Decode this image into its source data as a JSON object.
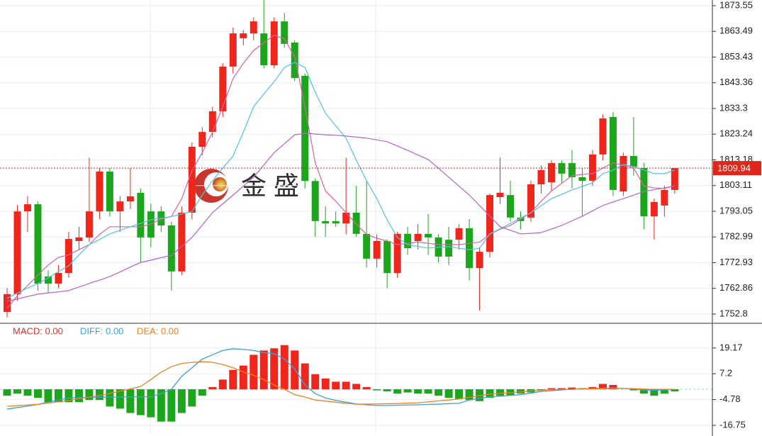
{
  "chart_data": [
    {
      "type": "candlestick",
      "watermark": "金 盛",
      "up_color": "#f0251b",
      "down_color": "#1ca61c",
      "ylim": [
        1749.47,
        1875.77
      ],
      "yticks": [
        1873.55,
        1863.49,
        1853.43,
        1843.36,
        1833.3,
        1823.24,
        1813.18,
        1803.11,
        1793.05,
        1782.99,
        1772.93,
        1762.86,
        1752.8
      ],
      "grid": true,
      "last_price": 1809.94,
      "open": [
        1753.6,
        1760.6,
        1793.0,
        1795.8,
        1767.5,
        1764.7,
        1768.9,
        1781.4,
        1782.8,
        1793.0,
        1808.6,
        1793.0,
        1796.9,
        1800.3,
        1793.0,
        1793.0,
        1787.5,
        1769.5,
        1792.5,
        1818.3,
        1824.1,
        1832.2,
        1849.7,
        1860.8,
        1862.7,
        1862.7,
        1850.2,
        1867.4,
        1859.1,
        1846.1,
        1804.9,
        1789.2,
        1789.2,
        1788.3,
        1792.5,
        1784.2,
        1774.5,
        1781.4,
        1768.9,
        1784.2,
        1781.4,
        1784.2,
        1782.8,
        1781.9,
        1781.9,
        1786.4,
        1770.8,
        1777.2,
        1798.6,
        1799.4,
        1790.6,
        1790.6,
        1803.6,
        1804.4,
        1811.9,
        1811.9,
        1806.4,
        1805.0,
        1815.3,
        1830.0,
        1800.8,
        1814.7,
        1810.0,
        1791.1,
        1795.3,
        1801.4
      ],
      "high": [
        1763,
        1795.5,
        1799,
        1797,
        1770,
        1772,
        1785,
        1787,
        1814,
        1810,
        1810,
        1799,
        1810,
        1802,
        1796,
        1795,
        1789,
        1795,
        1820,
        1826,
        1834,
        1851,
        1865,
        1864,
        1869,
        1876,
        1869,
        1870.8,
        1860,
        1847,
        1806,
        1795,
        1793,
        1814,
        1803,
        1805,
        1784,
        1782,
        1785,
        1787,
        1788,
        1792,
        1784,
        1787,
        1788,
        1790,
        1779,
        1800,
        1814.1,
        1805,
        1793,
        1805,
        1811,
        1813,
        1813,
        1817,
        1810,
        1817,
        1831,
        1831.9,
        1816,
        1830,
        1812,
        1798,
        1803,
        1810
      ],
      "low": [
        1751.5,
        1758,
        1785,
        1762,
        1761,
        1763,
        1767,
        1778,
        1781,
        1790,
        1791,
        1785,
        1794,
        1773,
        1779,
        1785,
        1762,
        1768,
        1790,
        1815,
        1822,
        1830,
        1847,
        1858,
        1860,
        1849,
        1849,
        1857,
        1844,
        1802,
        1783,
        1783,
        1787,
        1784,
        1783,
        1771,
        1771,
        1763,
        1767,
        1776,
        1778,
        1776,
        1773,
        1772,
        1778,
        1766,
        1754.2,
        1775,
        1796,
        1789,
        1786,
        1789,
        1800,
        1801,
        1804,
        1802,
        1791,
        1803,
        1813,
        1799,
        1799,
        1807,
        1786,
        1782,
        1791,
        1800
      ],
      "close": [
        1760.6,
        1793.0,
        1795.8,
        1764.7,
        1764.7,
        1768.9,
        1782.2,
        1782.8,
        1793.0,
        1808.6,
        1793.0,
        1796.9,
        1798.9,
        1782.8,
        1782.8,
        1787.5,
        1769.5,
        1792.5,
        1818.3,
        1824.1,
        1832.2,
        1849.7,
        1862.7,
        1862.7,
        1867.4,
        1850.2,
        1867.4,
        1858.6,
        1845.2,
        1804.9,
        1789.2,
        1788.3,
        1788.3,
        1792.5,
        1784.2,
        1774.5,
        1781.4,
        1768.9,
        1784.2,
        1778.6,
        1784.2,
        1782.8,
        1775.3,
        1775.3,
        1786.4,
        1770.8,
        1777.2,
        1799.4,
        1800.3,
        1790.6,
        1789.2,
        1803.6,
        1809.2,
        1811.9,
        1807.8,
        1806.4,
        1805.0,
        1815.3,
        1829.4,
        1801.4,
        1814.7,
        1810.5,
        1791.1,
        1796.7,
        1801.4,
        1809.94
      ],
      "lines": [
        {
          "color": "#e0609c",
          "values": [
            1755,
            1760,
            1764,
            1768,
            1772,
            1775,
            1776,
            1778,
            1780,
            1784,
            1787,
            1787,
            1787,
            1787,
            1788,
            1790,
            1791,
            1798,
            1809,
            1816,
            1824,
            1834,
            1845,
            1851,
            1856,
            1859,
            1862,
            1860.5,
            1853.6,
            1834,
            1812,
            1801,
            1797,
            1792.5,
            1788,
            1784,
            1782.5,
            1781.4,
            1780,
            1780.5,
            1781,
            1780.5,
            1780,
            1780,
            1780,
            1780.5,
            1781,
            1784,
            1786,
            1787.5,
            1790,
            1792.5,
            1797,
            1801,
            1804,
            1807,
            1807.5,
            1807.8,
            1810,
            1812,
            1811,
            1810,
            1803,
            1802.2,
            1802,
            1803
          ]
        },
        {
          "color": "#4ec5e2",
          "values": [
            1759,
            1761,
            1763,
            1764.7,
            1767,
            1769.5,
            1771.7,
            1776,
            1780,
            1782,
            1784.2,
            1785.6,
            1787,
            1788.3,
            1789.7,
            1790.3,
            1791,
            1792,
            1793,
            1799.4,
            1805,
            1810,
            1814.7,
            1824,
            1834,
            1839,
            1843.8,
            1849.4,
            1851.3,
            1849.4,
            1839.7,
            1831.4,
            1826.5,
            1821.7,
            1813,
            1805,
            1798,
            1789.7,
            1782.8,
            1780,
            1779.3,
            1778.6,
            1779,
            1779.2,
            1778.6,
            1778,
            1778.6,
            1784.2,
            1786.2,
            1788.3,
            1790.4,
            1792.5,
            1795.2,
            1798,
            1799.7,
            1801.4,
            1802.8,
            1804.2,
            1807.8,
            1809.2,
            1811.4,
            1810.5,
            1809.2,
            1807.8,
            1807.8,
            1809.2
          ]
        },
        {
          "color": "#b464cc",
          "values": [
            1757.8,
            1758.7,
            1759.7,
            1760.6,
            1761.1,
            1761.5,
            1762,
            1763.4,
            1764.8,
            1766.1,
            1767.5,
            1769.3,
            1771.2,
            1773,
            1773.9,
            1774.9,
            1775.8,
            1779.3,
            1782.8,
            1787.6,
            1792.5,
            1796,
            1799.4,
            1802.9,
            1806.4,
            1811.2,
            1816,
            1819.5,
            1823,
            1823.6,
            1823.3,
            1823,
            1822.8,
            1822.5,
            1822.1,
            1821.7,
            1821,
            1820.3,
            1818.6,
            1816.9,
            1815.1,
            1813.3,
            1809.9,
            1806.4,
            1802.9,
            1799.4,
            1795.3,
            1791.2,
            1787,
            1785.6,
            1784.2,
            1784.4,
            1784.7,
            1786.1,
            1787.5,
            1789.3,
            1791.1,
            1793.2,
            1795.3,
            1796.7,
            1798,
            1799.4,
            1800.8,
            1801.5,
            1802.2,
            1803
          ]
        }
      ]
    },
    {
      "type": "macd",
      "up_color": "#f0251b",
      "down_color": "#1ca61c",
      "ylim": [
        -20.7,
        30.3
      ],
      "yticks": [
        19.17,
        7.2,
        -4.78,
        -16.75
      ],
      "legend": [
        {
          "text": "MACD: 0.00",
          "color": "#e03030"
        },
        {
          "text": "DIFF: 0.00",
          "color": "#3aa0e0"
        },
        {
          "text": "DEA: 0.00",
          "color": "#f08020"
        }
      ],
      "values": [
        -3,
        -2,
        -3,
        -4,
        -6,
        -6,
        -6,
        -6,
        -5,
        -5,
        -8,
        -9,
        -11,
        -12,
        -13,
        -15,
        -15,
        -11,
        -8,
        -3,
        1,
        4.5,
        9,
        11,
        16,
        18,
        19,
        20.5,
        18,
        12,
        7,
        5,
        3.5,
        3.5,
        2.5,
        1,
        -0.5,
        -1,
        -2,
        -1.5,
        -2,
        -2,
        -3,
        -4,
        -4.5,
        -5,
        -5.5,
        -4,
        -3,
        -3,
        -2,
        -1.5,
        -0.5,
        0.5,
        0.5,
        0.8,
        0.5,
        1,
        2.5,
        2,
        0,
        -0.5,
        -2,
        -3,
        -2,
        -1
      ],
      "lines": [
        {
          "color": "#3aa0e0",
          "values": [
            -9.2,
            -8.5,
            -7.8,
            -7,
            -6,
            -5,
            -4,
            -3.9,
            -3.8,
            -3.7,
            -3.6,
            -3.6,
            -3.5,
            -3.5,
            -3.5,
            -2,
            0,
            6,
            10,
            14,
            16,
            18,
            18.8,
            18.5,
            18,
            17,
            16.5,
            14,
            9.5,
            2,
            -2,
            -4,
            -5.2,
            -6,
            -6.8,
            -7.2,
            -7.5,
            -7.5,
            -7.4,
            -7.3,
            -7.2,
            -7,
            -6.9,
            -6.7,
            -6.5,
            -5,
            -4.2,
            -3.5,
            -3.2,
            -2.8,
            -2.5,
            -1.8,
            -1,
            -0.7,
            -0.3,
            0,
            0.2,
            0.3,
            0.5,
            0.6,
            0.4,
            0.1,
            -0.3,
            -0.5,
            -0.3,
            0
          ]
        },
        {
          "color": "#f08020",
          "values": [
            -7.9,
            -7.6,
            -7.3,
            -7,
            -6.4,
            -5.8,
            -5.2,
            -4.4,
            -3.6,
            -2.8,
            -2,
            -0.9,
            0.2,
            1.3,
            4.5,
            8,
            10.5,
            12,
            12.5,
            12.8,
            12.5,
            11.5,
            10,
            8,
            6.5,
            4.5,
            2,
            0,
            -2.5,
            -3.6,
            -5,
            -5.5,
            -6,
            -6.5,
            -6.9,
            -6.9,
            -6.8,
            -6.7,
            -6.6,
            -6.4,
            -6.3,
            -5.8,
            -5.4,
            -5,
            -4.5,
            -3.8,
            -3,
            -2.3,
            -1.9,
            -1.6,
            -1.2,
            -0.8,
            -0.5,
            -0.3,
            -0.1,
            0,
            0.1,
            0.2,
            0.3,
            0.4,
            0.4,
            0.3,
            0.1,
            0,
            0,
            0
          ]
        }
      ]
    }
  ]
}
